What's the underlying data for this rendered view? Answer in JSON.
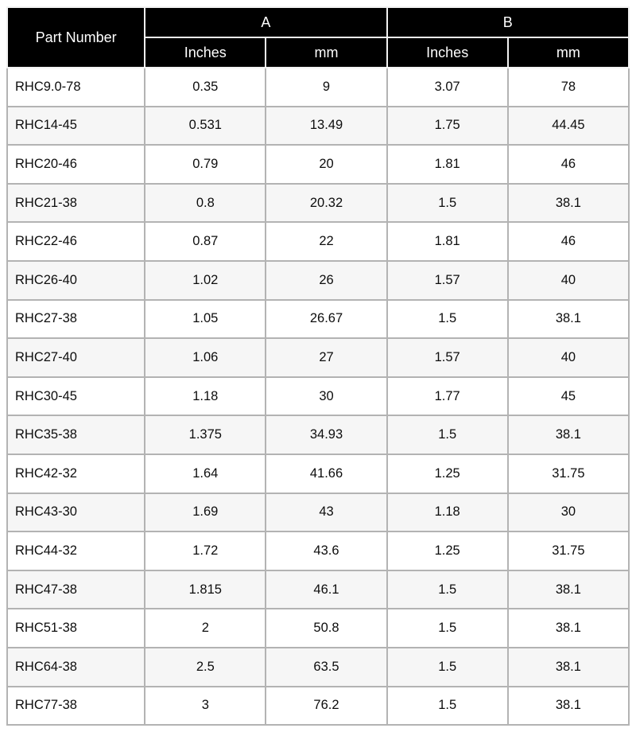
{
  "chart_data": {
    "type": "table",
    "header": {
      "part_number": "Part Number",
      "group_a": "A",
      "group_b": "B",
      "sub_inches": "Inches",
      "sub_mm": "mm"
    },
    "columns": [
      "Part Number",
      "A Inches",
      "A mm",
      "B Inches",
      "B mm"
    ],
    "rows": [
      {
        "part": "RHC9.0-78",
        "a_in": "0.35",
        "a_mm": "9",
        "b_in": "3.07",
        "b_mm": "78"
      },
      {
        "part": "RHC14-45",
        "a_in": "0.531",
        "a_mm": "13.49",
        "b_in": "1.75",
        "b_mm": "44.45"
      },
      {
        "part": "RHC20-46",
        "a_in": "0.79",
        "a_mm": "20",
        "b_in": "1.81",
        "b_mm": "46"
      },
      {
        "part": "RHC21-38",
        "a_in": "0.8",
        "a_mm": "20.32",
        "b_in": "1.5",
        "b_mm": "38.1"
      },
      {
        "part": "RHC22-46",
        "a_in": "0.87",
        "a_mm": "22",
        "b_in": "1.81",
        "b_mm": "46"
      },
      {
        "part": "RHC26-40",
        "a_in": "1.02",
        "a_mm": "26",
        "b_in": "1.57",
        "b_mm": "40"
      },
      {
        "part": "RHC27-38",
        "a_in": "1.05",
        "a_mm": "26.67",
        "b_in": "1.5",
        "b_mm": "38.1"
      },
      {
        "part": "RHC27-40",
        "a_in": "1.06",
        "a_mm": "27",
        "b_in": "1.57",
        "b_mm": "40"
      },
      {
        "part": "RHC30-45",
        "a_in": "1.18",
        "a_mm": "30",
        "b_in": "1.77",
        "b_mm": "45"
      },
      {
        "part": "RHC35-38",
        "a_in": "1.375",
        "a_mm": "34.93",
        "b_in": "1.5",
        "b_mm": "38.1"
      },
      {
        "part": "RHC42-32",
        "a_in": "1.64",
        "a_mm": "41.66",
        "b_in": "1.25",
        "b_mm": "31.75"
      },
      {
        "part": "RHC43-30",
        "a_in": "1.69",
        "a_mm": "43",
        "b_in": "1.18",
        "b_mm": "30"
      },
      {
        "part": "RHC44-32",
        "a_in": "1.72",
        "a_mm": "43.6",
        "b_in": "1.25",
        "b_mm": "31.75"
      },
      {
        "part": "RHC47-38",
        "a_in": "1.815",
        "a_mm": "46.1",
        "b_in": "1.5",
        "b_mm": "38.1"
      },
      {
        "part": "RHC51-38",
        "a_in": "2",
        "a_mm": "50.8",
        "b_in": "1.5",
        "b_mm": "38.1"
      },
      {
        "part": "RHC64-38",
        "a_in": "2.5",
        "a_mm": "63.5",
        "b_in": "1.5",
        "b_mm": "38.1"
      },
      {
        "part": "RHC77-38",
        "a_in": "3",
        "a_mm": "76.2",
        "b_in": "1.5",
        "b_mm": "38.1"
      }
    ]
  },
  "colors": {
    "header_bg": "#000000",
    "header_text": "#ffffff",
    "grid_border": "#b3b3b3",
    "row_bg": "#ffffff",
    "row_alt_bg": "#f6f6f6",
    "body_text": "#0d0d0d"
  }
}
